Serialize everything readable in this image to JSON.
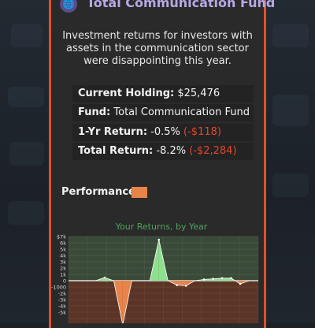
{
  "fund_name": "Total Communication Fund",
  "description": "Investment returns for investors with assets in the communication sector were disappointing this year.",
  "stats": {
    "holding_label": "Current Holding:",
    "holding_value": "$25,476",
    "fund_label": "Fund:",
    "fund_value": "Total Communication Fund",
    "one_yr_label": "1-Yr Return:",
    "one_yr_value": "-0.5%",
    "one_yr_amount": "(-$118)",
    "total_label": "Total Return:",
    "total_value": "-8.2%",
    "total_amount": "(-$2,284)"
  },
  "performance_label": "Performance",
  "colors": {
    "accent": "#e2502c",
    "title_purple": "#b7a8e6",
    "positive_fill": "#8ee08e",
    "negative_fill": "#e8834a",
    "chart_title": "#4fa35b"
  },
  "icons": {
    "fund_icon": "globe-icon"
  },
  "chart_data": {
    "type": "area",
    "title": "Your Returns, by Year",
    "y_tick_labels": [
      "$7k",
      "6k",
      "5k",
      "4k",
      "3k",
      "2k",
      "1k",
      "0",
      "-1000",
      "-2k",
      "-3k",
      "-4k",
      "-5k"
    ],
    "ylim": [
      -7000,
      7000
    ],
    "x": [
      0,
      1,
      2,
      3,
      4,
      5,
      6,
      7,
      8,
      9,
      10,
      11,
      12,
      13,
      14,
      15,
      16,
      17,
      18,
      19,
      20,
      21
    ],
    "values": [
      0,
      0,
      0,
      0,
      500,
      0,
      -7000,
      0,
      0,
      0,
      6500,
      0,
      -700,
      -800,
      0,
      200,
      300,
      400,
      400,
      -500,
      0,
      0
    ]
  }
}
